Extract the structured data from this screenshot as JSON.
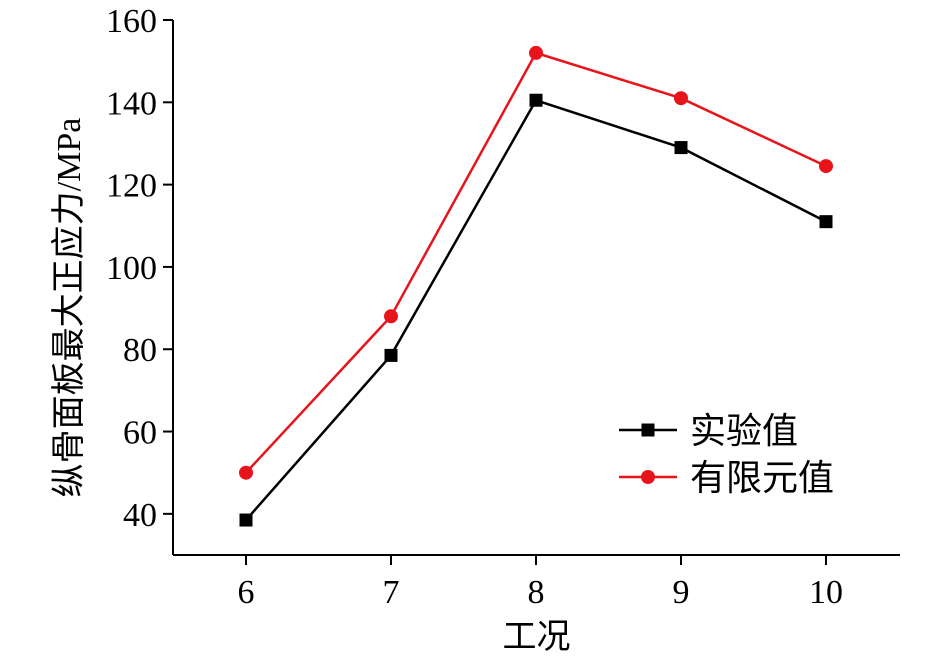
{
  "chart_data": {
    "type": "line",
    "xlabel": "工况",
    "ylabel": "纵骨面板最大正应力/MPa",
    "x": [
      6,
      7,
      8,
      9,
      10
    ],
    "x_ticks": [
      "6",
      "7",
      "8",
      "9",
      "10"
    ],
    "ylim": [
      30,
      160
    ],
    "y_ticks": [
      "40",
      "60",
      "80",
      "100",
      "120",
      "140",
      "160"
    ],
    "y_tick_values": [
      40,
      60,
      80,
      100,
      120,
      140,
      160
    ],
    "grid": false,
    "legend_position": "bottom-right",
    "series": [
      {
        "name": "实验值",
        "values": [
          38.5,
          78.5,
          140.5,
          129,
          111
        ],
        "color": "#000000",
        "marker": "square"
      },
      {
        "name": "有限元值",
        "values": [
          50,
          88,
          152,
          141,
          124.5
        ],
        "color": "#e8141b",
        "marker": "circle"
      }
    ]
  }
}
